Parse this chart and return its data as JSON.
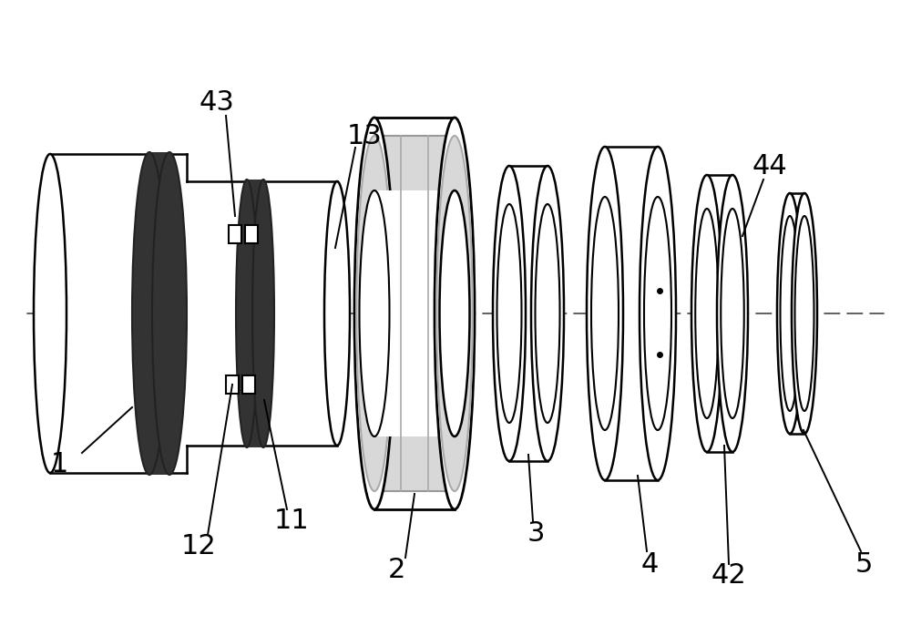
{
  "bg_color": "#ffffff",
  "line_color": "#000000",
  "figsize": [
    10.0,
    6.87
  ],
  "dpi": 100,
  "annotation_fontsize": 22
}
